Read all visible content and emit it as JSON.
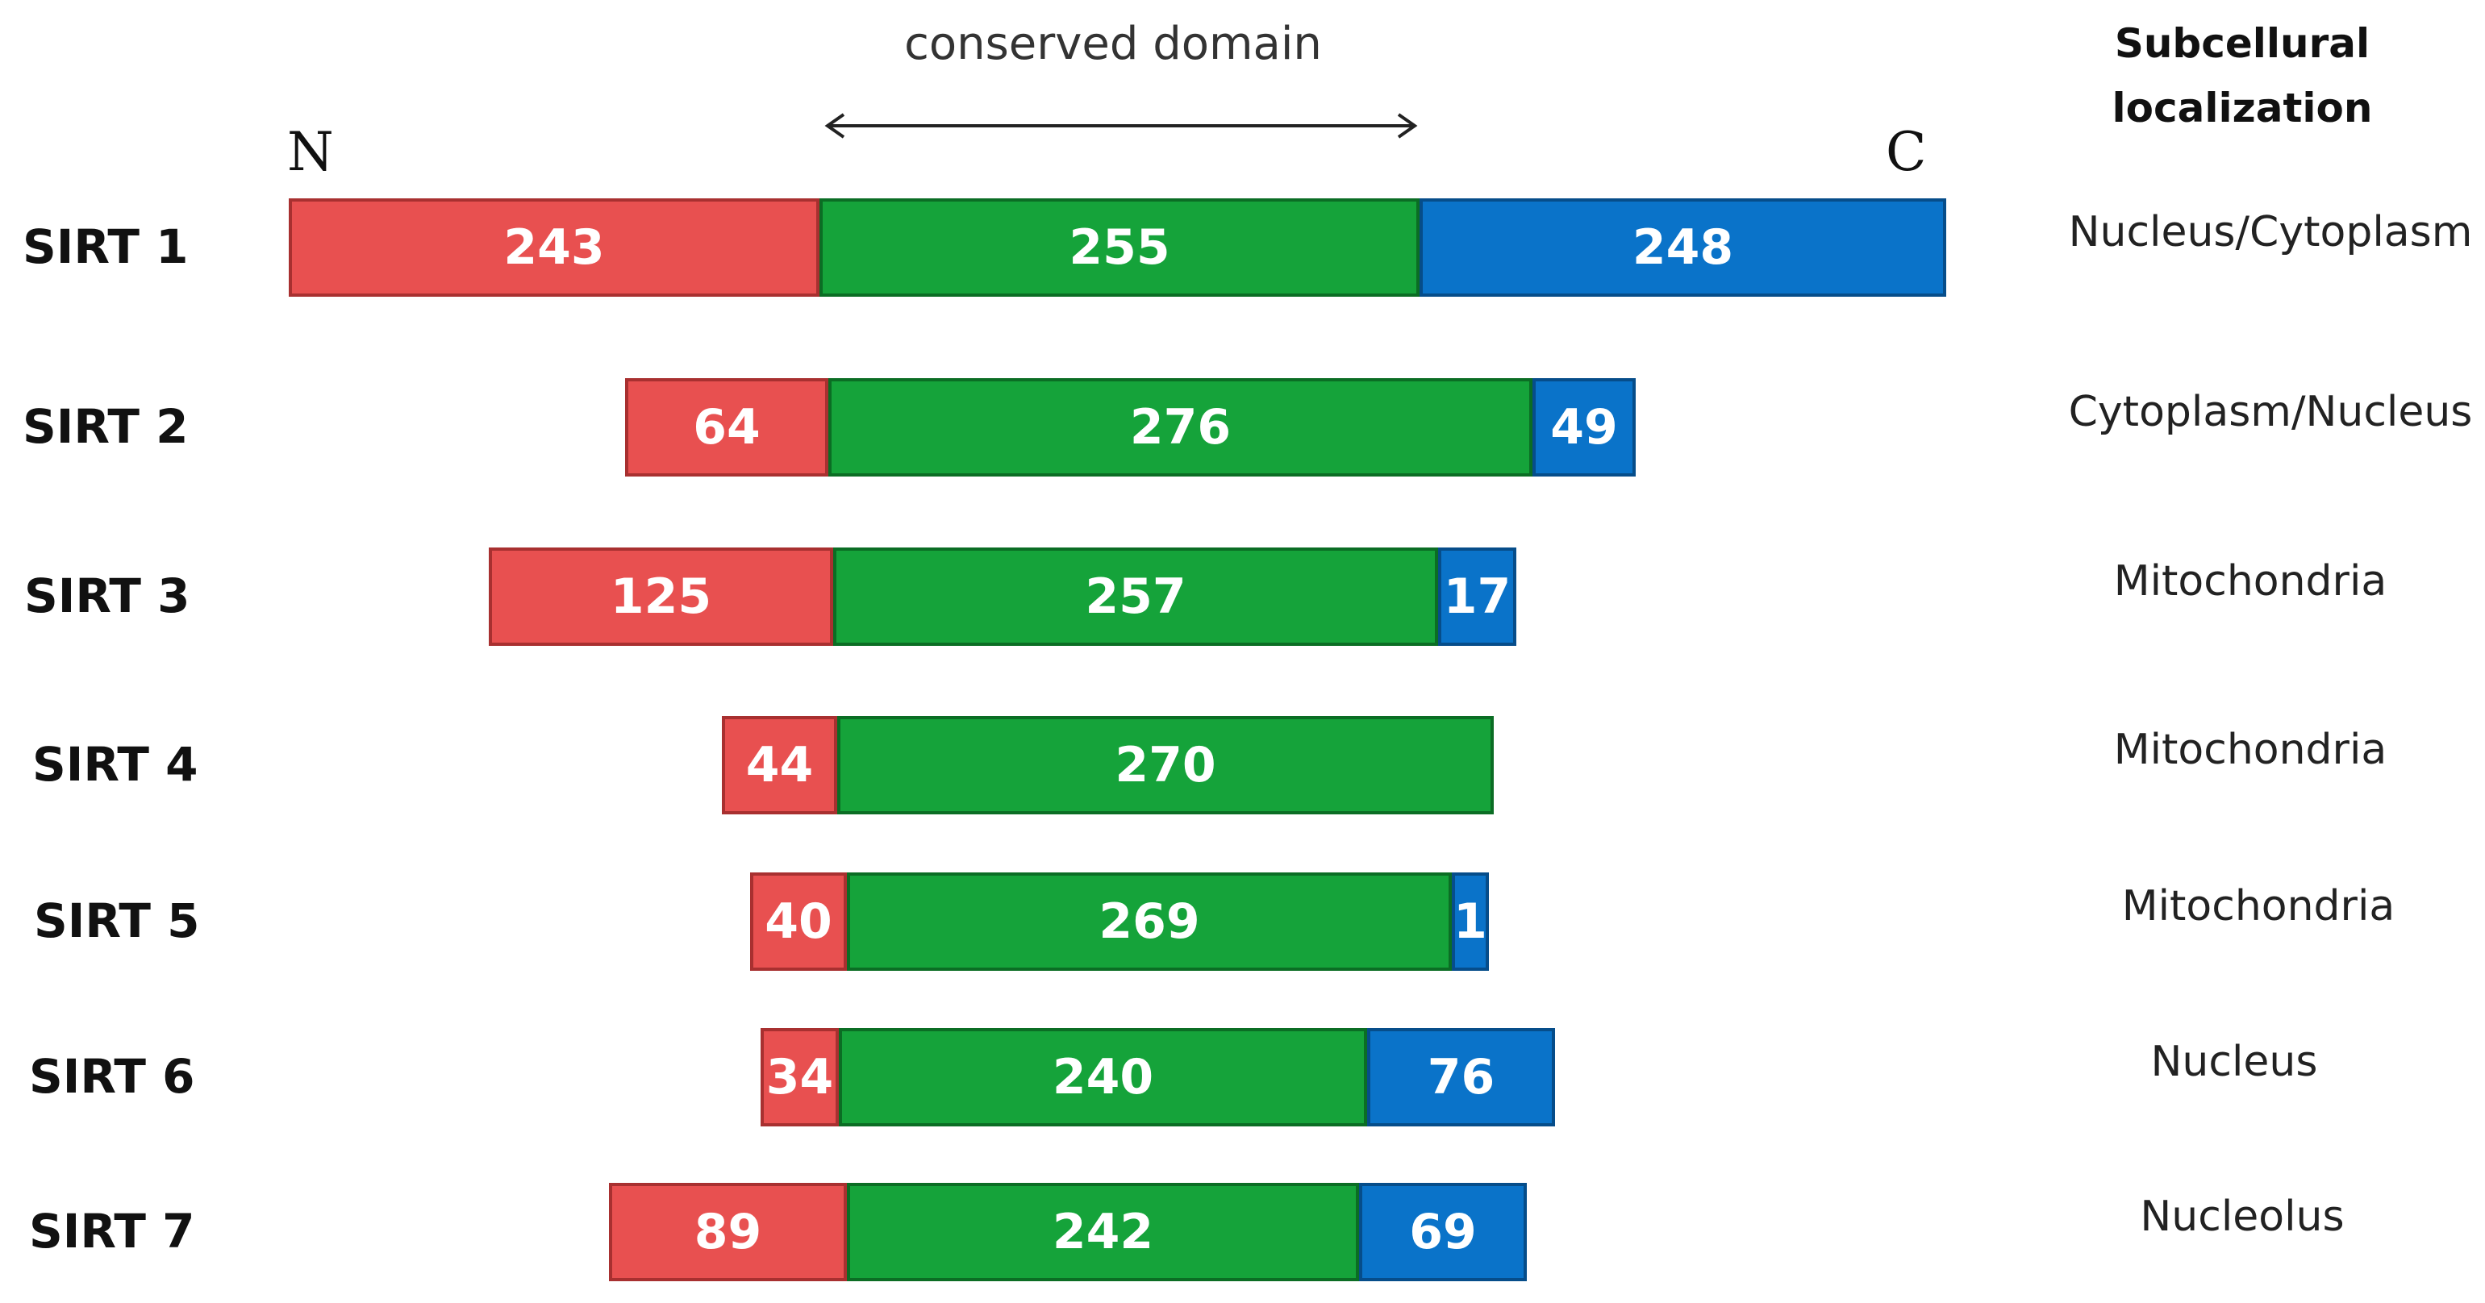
{
  "header": {
    "domain_label": "conserved domain",
    "localization_line1": "Subcellural",
    "localization_line2": "localization",
    "n_terminus": "N",
    "c_terminus": "C"
  },
  "colors": {
    "n_terminal": "#e85050",
    "conserved_domain": "#15a33a",
    "c_terminal": "#0a73c9"
  },
  "icons": {
    "domain_arrow": "double-headed-arrow-icon"
  },
  "proteins": [
    {
      "name": "SIRT 1",
      "n": "243",
      "domain": "255",
      "c": "248",
      "localization": "Nucleus/Cytoplasm"
    },
    {
      "name": "SIRT 2",
      "n": "64",
      "domain": "276",
      "c": "49",
      "localization": "Cytoplasm/Nucleus"
    },
    {
      "name": "SIRT 3",
      "n": "125",
      "domain": "257",
      "c": "17",
      "localization": "Mitochondria"
    },
    {
      "name": "SIRT 4",
      "n": "44",
      "domain": "270",
      "c": "",
      "localization": "Mitochondria"
    },
    {
      "name": "SIRT 5",
      "n": "40",
      "domain": "269",
      "c": "1",
      "localization": "Mitochondria"
    },
    {
      "name": "SIRT 6",
      "n": "34",
      "domain": "240",
      "c": "76",
      "localization": "Nucleus"
    },
    {
      "name": "SIRT 7",
      "n": "89",
      "domain": "242",
      "c": "69",
      "localization": "Nucleolus"
    }
  ]
}
